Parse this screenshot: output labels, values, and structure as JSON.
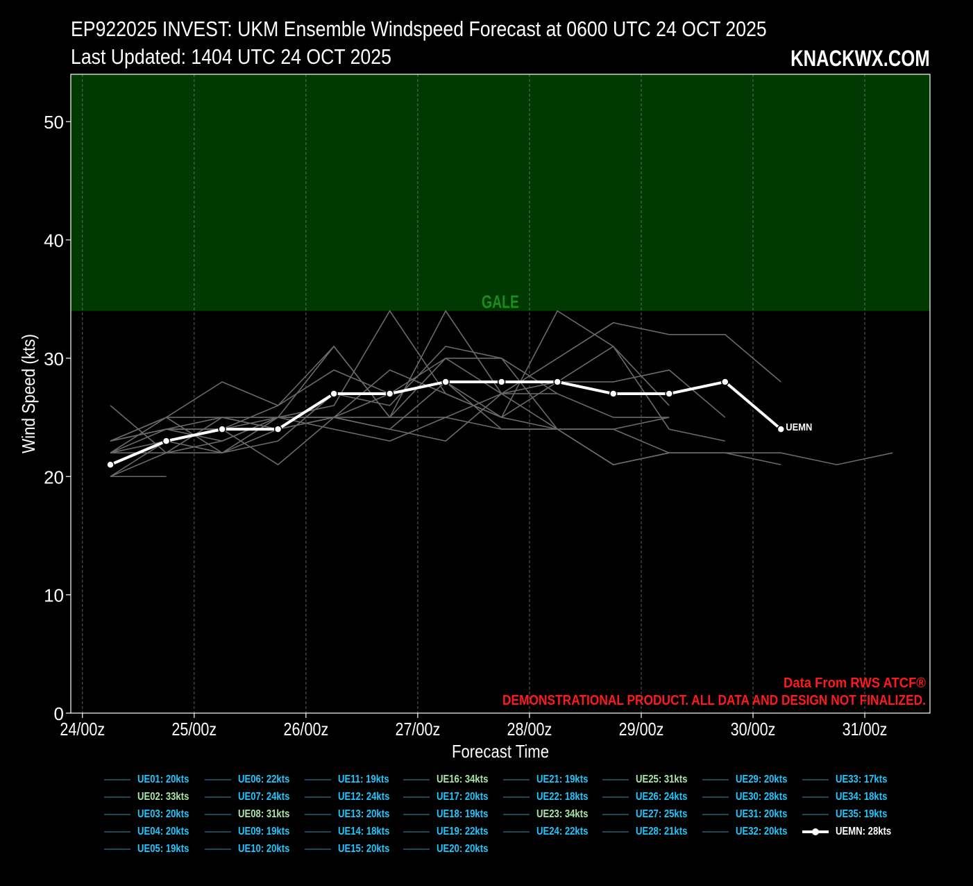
{
  "header": {
    "title_line1": "EP922025 INVEST: UKM Ensemble Windspeed Forecast at 0600 UTC 24 OCT 2025",
    "title_line2": "Last Updated: 1404 UTC 24 OCT 2025",
    "brand": "KNACKWX.COM"
  },
  "colors": {
    "background": "#000000",
    "gale_band": "#003a00",
    "gale_label": "#1c8a1c",
    "member_line": "#6a6a6a",
    "mean_line": "#ffffff",
    "legend_text_cyan": "#1ec8ff",
    "legend_text_green": "#a8e6a8",
    "legend_line": "#1a4a5a",
    "disclaimer": "#ff1a1a"
  },
  "chart_data": {
    "type": "line",
    "xlabel": "Forecast Time",
    "ylabel": "Wind Speed (kts)",
    "x_tick_labels": [
      "24/00z",
      "25/00z",
      "26/00z",
      "27/00z",
      "28/00z",
      "29/00z",
      "30/00z",
      "31/00z"
    ],
    "x_ticks_hours": [
      0,
      24,
      48,
      72,
      96,
      120,
      144,
      168
    ],
    "xlim_hours": [
      -2.5,
      182
    ],
    "ylim": [
      0,
      54
    ],
    "y_ticks": [
      0,
      10,
      20,
      30,
      40,
      50
    ],
    "grid": "vertical dashed",
    "bands": [
      {
        "label": "GALE",
        "from": 34,
        "to": 54
      }
    ],
    "x_hours": [
      6,
      18,
      30,
      42,
      54,
      66,
      78,
      90,
      102,
      114,
      126,
      138,
      150,
      162,
      174
    ],
    "mean": {
      "name": "UEMN",
      "values": [
        21,
        23,
        24,
        24,
        27,
        27,
        28,
        28,
        28,
        27,
        27,
        28,
        24
      ]
    },
    "members": [
      [
        20,
        20
      ],
      [
        23,
        25,
        25,
        25,
        25,
        24,
        23,
        27,
        28,
        28,
        29,
        25
      ],
      [
        22,
        22,
        22,
        23,
        27,
        26,
        31,
        30,
        27
      ],
      [
        26,
        22,
        25,
        24
      ],
      [
        23,
        25,
        28,
        26,
        31,
        25,
        30,
        30,
        24
      ],
      [
        20,
        22,
        23,
        25,
        25,
        25,
        25,
        27,
        27,
        25,
        25
      ],
      [
        22,
        24,
        24,
        21,
        25,
        27,
        28,
        25,
        28,
        31,
        26
      ],
      [
        20,
        23,
        22,
        24,
        25,
        29,
        27,
        25,
        24,
        24,
        25
      ],
      [
        23,
        24,
        24,
        26,
        29,
        27,
        30,
        27,
        30,
        33,
        32,
        32,
        28
      ],
      [
        22,
        23,
        24,
        25,
        24,
        23,
        25,
        24,
        24,
        24,
        22,
        22,
        22,
        21,
        22,
        22
      ],
      [
        23,
        24,
        25,
        24,
        25,
        24,
        28,
        24,
        24,
        21,
        22
      ],
      [
        22,
        25,
        22,
        25,
        31,
        25,
        34,
        27,
        24,
        21,
        22,
        22,
        21
      ],
      [
        23,
        24,
        23,
        25,
        26,
        34,
        27,
        25,
        34,
        31,
        24,
        23
      ]
    ],
    "legend": [
      {
        "label": "UE01: 20kts",
        "tone": "cyan"
      },
      {
        "label": "UE02: 33kts",
        "tone": "green"
      },
      {
        "label": "UE03: 20kts",
        "tone": "cyan"
      },
      {
        "label": "UE04: 20kts",
        "tone": "cyan"
      },
      {
        "label": "UE05: 19kts",
        "tone": "cyan"
      },
      {
        "label": "UE06: 22kts",
        "tone": "cyan"
      },
      {
        "label": "UE07: 24kts",
        "tone": "cyan"
      },
      {
        "label": "UE08: 31kts",
        "tone": "green"
      },
      {
        "label": "UE09: 19kts",
        "tone": "cyan"
      },
      {
        "label": "UE10: 20kts",
        "tone": "cyan"
      },
      {
        "label": "UE11: 19kts",
        "tone": "cyan"
      },
      {
        "label": "UE12: 24kts",
        "tone": "cyan"
      },
      {
        "label": "UE13: 20kts",
        "tone": "cyan"
      },
      {
        "label": "UE14: 18kts",
        "tone": "cyan"
      },
      {
        "label": "UE15: 20kts",
        "tone": "cyan"
      },
      {
        "label": "UE16: 34kts",
        "tone": "green"
      },
      {
        "label": "UE17: 20kts",
        "tone": "cyan"
      },
      {
        "label": "UE18: 19kts",
        "tone": "cyan"
      },
      {
        "label": "UE19: 22kts",
        "tone": "cyan"
      },
      {
        "label": "UE20: 20kts",
        "tone": "cyan"
      },
      {
        "label": "UE21: 19kts",
        "tone": "cyan"
      },
      {
        "label": "UE22: 18kts",
        "tone": "cyan"
      },
      {
        "label": "UE23: 34kts",
        "tone": "green"
      },
      {
        "label": "UE24: 22kts",
        "tone": "cyan"
      },
      {
        "label": "UE25: 31kts",
        "tone": "green"
      },
      {
        "label": "UE26: 24kts",
        "tone": "cyan"
      },
      {
        "label": "UE27: 25kts",
        "tone": "cyan"
      },
      {
        "label": "UE28: 21kts",
        "tone": "cyan"
      },
      {
        "label": "UE29: 20kts",
        "tone": "cyan"
      },
      {
        "label": "UE30: 28kts",
        "tone": "cyan"
      },
      {
        "label": "UE31: 20kts",
        "tone": "cyan"
      },
      {
        "label": "UE32: 20kts",
        "tone": "cyan"
      },
      {
        "label": "UE33: 17kts",
        "tone": "cyan"
      },
      {
        "label": "UE34: 18kts",
        "tone": "cyan"
      },
      {
        "label": "UE35: 19kts",
        "tone": "cyan"
      },
      {
        "label": "UEMN: 28kts",
        "tone": "mean"
      }
    ],
    "annotations": {
      "source": "Data From RWS ATCF®",
      "disclaimer": "DEMONSTRATIONAL PRODUCT. ALL DATA AND DESIGN NOT FINALIZED."
    }
  }
}
